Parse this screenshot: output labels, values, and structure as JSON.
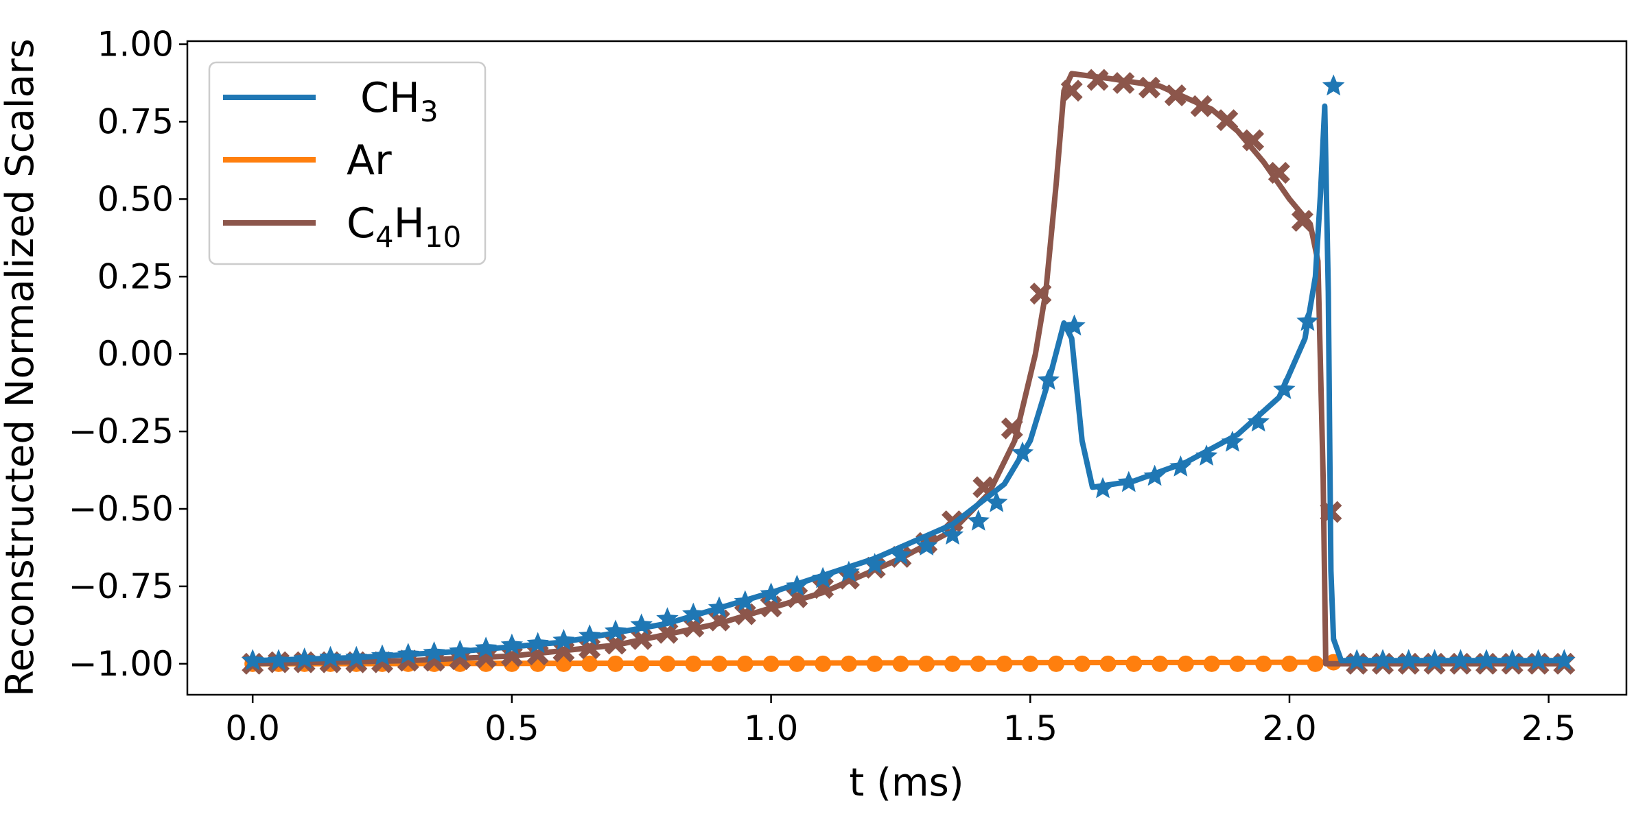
{
  "chart_data": {
    "type": "line",
    "title": "",
    "xlabel": "t (ms)",
    "ylabel": "Reconstructed Normalized Scalars",
    "xlim": [
      -0.126,
      2.65
    ],
    "ylim": [
      -1.1,
      1.01
    ],
    "xticks": [
      0.0,
      0.5,
      1.0,
      1.5,
      2.0,
      2.5
    ],
    "xtick_labels": [
      "0.0",
      "0.5",
      "1.0",
      "1.5",
      "2.0",
      "2.5"
    ],
    "yticks": [
      1.0,
      0.75,
      0.5,
      0.25,
      0.0,
      -0.25,
      -0.5,
      -0.75,
      -1.0
    ],
    "ytick_labels": [
      "1.00",
      "0.75",
      "0.50",
      "0.25",
      "0.00",
      "−0.25",
      "−0.50",
      "−0.75",
      "−1.00"
    ],
    "grid": false,
    "legend_position": "top-left",
    "series": [
      {
        "name": "CH3",
        "legend_main": "CH",
        "legend_sub": "3",
        "color": "#1f77b4",
        "marker": "star",
        "line": [
          [
            0,
            -0.99
          ],
          [
            0.2,
            -0.98
          ],
          [
            0.4,
            -0.96
          ],
          [
            0.6,
            -0.93
          ],
          [
            0.8,
            -0.87
          ],
          [
            1.0,
            -0.77
          ],
          [
            1.2,
            -0.66
          ],
          [
            1.35,
            -0.55
          ],
          [
            1.45,
            -0.42
          ],
          [
            1.5,
            -0.28
          ],
          [
            1.54,
            -0.06
          ],
          [
            1.565,
            0.1
          ],
          [
            1.58,
            0.05
          ],
          [
            1.6,
            -0.28
          ],
          [
            1.62,
            -0.43
          ],
          [
            1.7,
            -0.41
          ],
          [
            1.8,
            -0.35
          ],
          [
            1.9,
            -0.26
          ],
          [
            1.98,
            -0.14
          ],
          [
            2.03,
            0.05
          ],
          [
            2.05,
            0.25
          ],
          [
            2.06,
            0.52
          ],
          [
            2.068,
            0.8
          ],
          [
            2.075,
            0.2
          ],
          [
            2.08,
            -0.7
          ],
          [
            2.085,
            -0.92
          ],
          [
            2.1,
            -0.99
          ],
          [
            2.53,
            -0.99
          ]
        ],
        "markers": [
          [
            0,
            -0.99
          ],
          [
            0.05,
            -0.99
          ],
          [
            0.1,
            -0.985
          ],
          [
            0.15,
            -0.98
          ],
          [
            0.2,
            -0.98
          ],
          [
            0.25,
            -0.975
          ],
          [
            0.3,
            -0.97
          ],
          [
            0.35,
            -0.965
          ],
          [
            0.4,
            -0.96
          ],
          [
            0.45,
            -0.95
          ],
          [
            0.5,
            -0.94
          ],
          [
            0.55,
            -0.935
          ],
          [
            0.6,
            -0.925
          ],
          [
            0.65,
            -0.91
          ],
          [
            0.7,
            -0.895
          ],
          [
            0.75,
            -0.875
          ],
          [
            0.8,
            -0.855
          ],
          [
            0.85,
            -0.84
          ],
          [
            0.9,
            -0.82
          ],
          [
            0.95,
            -0.8
          ],
          [
            1.0,
            -0.775
          ],
          [
            1.05,
            -0.75
          ],
          [
            1.1,
            -0.725
          ],
          [
            1.15,
            -0.705
          ],
          [
            1.2,
            -0.68
          ],
          [
            1.25,
            -0.65
          ],
          [
            1.3,
            -0.62
          ],
          [
            1.35,
            -0.585
          ],
          [
            1.4,
            -0.54
          ],
          [
            1.435,
            -0.48
          ],
          [
            1.485,
            -0.32
          ],
          [
            1.535,
            -0.085
          ],
          [
            1.585,
            0.09
          ],
          [
            1.64,
            -0.435
          ],
          [
            1.69,
            -0.415
          ],
          [
            1.74,
            -0.395
          ],
          [
            1.79,
            -0.365
          ],
          [
            1.84,
            -0.33
          ],
          [
            1.89,
            -0.285
          ],
          [
            1.94,
            -0.22
          ],
          [
            1.99,
            -0.115
          ],
          [
            2.035,
            0.105
          ],
          [
            2.085,
            0.865
          ],
          [
            2.13,
            -0.99
          ],
          [
            2.18,
            -0.99
          ],
          [
            2.23,
            -0.99
          ],
          [
            2.28,
            -0.99
          ],
          [
            2.33,
            -0.99
          ],
          [
            2.38,
            -0.99
          ],
          [
            2.43,
            -0.99
          ],
          [
            2.48,
            -0.99
          ],
          [
            2.53,
            -0.99
          ]
        ]
      },
      {
        "name": "Ar",
        "legend_main": "Ar",
        "legend_sub": "",
        "color": "#ff7f0e",
        "marker": "circle",
        "line": [
          [
            0,
            -1.0
          ],
          [
            2.08,
            -0.995
          ]
        ],
        "markers": [
          [
            0,
            -1.0
          ],
          [
            0.05,
            -1.0
          ],
          [
            0.1,
            -1.0
          ],
          [
            0.15,
            -1.0
          ],
          [
            0.2,
            -1.0
          ],
          [
            0.25,
            -1.0
          ],
          [
            0.3,
            -1.0
          ],
          [
            0.35,
            -1.0
          ],
          [
            0.4,
            -1.0
          ],
          [
            0.45,
            -1.0
          ],
          [
            0.5,
            -1.0
          ],
          [
            0.55,
            -1.0
          ],
          [
            0.6,
            -1.0
          ],
          [
            0.65,
            -1.0
          ],
          [
            0.7,
            -1.0
          ],
          [
            0.75,
            -1.0
          ],
          [
            0.8,
            -1.0
          ],
          [
            0.85,
            -1.0
          ],
          [
            0.9,
            -1.0
          ],
          [
            0.95,
            -1.0
          ],
          [
            1.0,
            -1.0
          ],
          [
            1.05,
            -1.0
          ],
          [
            1.1,
            -1.0
          ],
          [
            1.15,
            -1.0
          ],
          [
            1.2,
            -1.0
          ],
          [
            1.25,
            -1.0
          ],
          [
            1.3,
            -1.0
          ],
          [
            1.35,
            -1.0
          ],
          [
            1.4,
            -1.0
          ],
          [
            1.45,
            -1.0
          ],
          [
            1.5,
            -1.0
          ],
          [
            1.55,
            -1.0
          ],
          [
            1.6,
            -1.0
          ],
          [
            1.65,
            -1.0
          ],
          [
            1.7,
            -1.0
          ],
          [
            1.75,
            -1.0
          ],
          [
            1.8,
            -1.0
          ],
          [
            1.85,
            -1.0
          ],
          [
            1.9,
            -1.0
          ],
          [
            1.95,
            -1.0
          ],
          [
            2.0,
            -1.0
          ],
          [
            2.05,
            -1.0
          ],
          [
            2.085,
            -0.995
          ]
        ]
      },
      {
        "name": "C4H10",
        "legend_main": "C",
        "legend_sub": "4",
        "legend_main2": "H",
        "legend_sub2": "10",
        "color": "#8c564b",
        "marker": "x",
        "line": [
          [
            0,
            -1.0
          ],
          [
            0.3,
            -0.99
          ],
          [
            0.5,
            -0.975
          ],
          [
            0.7,
            -0.94
          ],
          [
            0.9,
            -0.87
          ],
          [
            1.1,
            -0.77
          ],
          [
            1.25,
            -0.66
          ],
          [
            1.35,
            -0.57
          ],
          [
            1.42,
            -0.45
          ],
          [
            1.47,
            -0.28
          ],
          [
            1.51,
            0.0
          ],
          [
            1.53,
            0.2
          ],
          [
            1.55,
            0.55
          ],
          [
            1.565,
            0.85
          ],
          [
            1.58,
            0.905
          ],
          [
            1.65,
            0.89
          ],
          [
            1.75,
            0.865
          ],
          [
            1.85,
            0.79
          ],
          [
            1.9,
            0.72
          ],
          [
            1.95,
            0.62
          ],
          [
            2.0,
            0.5
          ],
          [
            2.04,
            0.42
          ],
          [
            2.055,
            0.3
          ],
          [
            2.065,
            -0.4
          ],
          [
            2.07,
            -1.0
          ],
          [
            2.53,
            -1.0
          ]
        ],
        "markers": [
          [
            0,
            -1.0
          ],
          [
            0.05,
            -0.995
          ],
          [
            0.1,
            -0.995
          ],
          [
            0.15,
            -0.995
          ],
          [
            0.2,
            -0.995
          ],
          [
            0.25,
            -0.995
          ],
          [
            0.3,
            -0.99
          ],
          [
            0.35,
            -0.99
          ],
          [
            0.4,
            -0.985
          ],
          [
            0.45,
            -0.98
          ],
          [
            0.5,
            -0.975
          ],
          [
            0.55,
            -0.97
          ],
          [
            0.6,
            -0.96
          ],
          [
            0.65,
            -0.95
          ],
          [
            0.7,
            -0.935
          ],
          [
            0.75,
            -0.92
          ],
          [
            0.8,
            -0.9
          ],
          [
            0.85,
            -0.88
          ],
          [
            0.9,
            -0.86
          ],
          [
            0.95,
            -0.84
          ],
          [
            1.0,
            -0.815
          ],
          [
            1.05,
            -0.785
          ],
          [
            1.1,
            -0.755
          ],
          [
            1.15,
            -0.725
          ],
          [
            1.2,
            -0.69
          ],
          [
            1.25,
            -0.655
          ],
          [
            1.3,
            -0.61
          ],
          [
            1.35,
            -0.54
          ],
          [
            1.41,
            -0.43
          ],
          [
            1.465,
            -0.24
          ],
          [
            1.52,
            0.195
          ],
          [
            1.58,
            0.85
          ],
          [
            1.63,
            0.885
          ],
          [
            1.68,
            0.875
          ],
          [
            1.73,
            0.86
          ],
          [
            1.78,
            0.835
          ],
          [
            1.83,
            0.8
          ],
          [
            1.88,
            0.755
          ],
          [
            1.93,
            0.69
          ],
          [
            1.98,
            0.585
          ],
          [
            2.025,
            0.43
          ],
          [
            2.08,
            -0.51
          ],
          [
            2.13,
            -1.0
          ],
          [
            2.18,
            -1.0
          ],
          [
            2.23,
            -1.0
          ],
          [
            2.28,
            -1.0
          ],
          [
            2.33,
            -1.0
          ],
          [
            2.38,
            -1.0
          ],
          [
            2.43,
            -1.0
          ],
          [
            2.48,
            -1.0
          ],
          [
            2.53,
            -1.0
          ]
        ]
      }
    ]
  }
}
